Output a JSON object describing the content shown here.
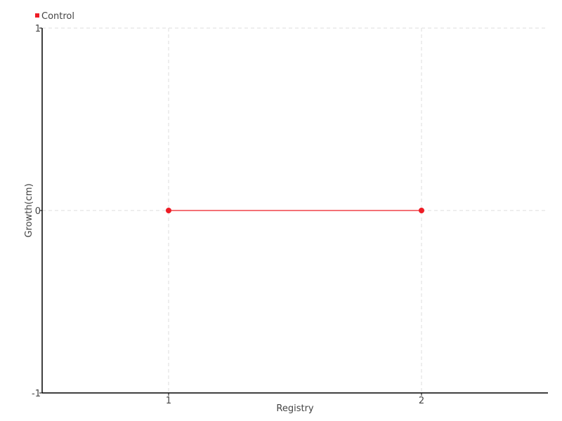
{
  "chart_data": {
    "type": "line",
    "title": "",
    "xlabel": "Registry",
    "ylabel": "Growth(cm)",
    "xlim": [
      0.5,
      2.5
    ],
    "ylim": [
      -1,
      1
    ],
    "xticks": [
      1,
      2
    ],
    "yticks": [
      -1,
      0,
      1
    ],
    "grid": true,
    "legend": "top-left",
    "series": [
      {
        "name": "Control",
        "color": "#ee1c25",
        "x": [
          1,
          2
        ],
        "y": [
          0,
          0
        ]
      }
    ]
  }
}
